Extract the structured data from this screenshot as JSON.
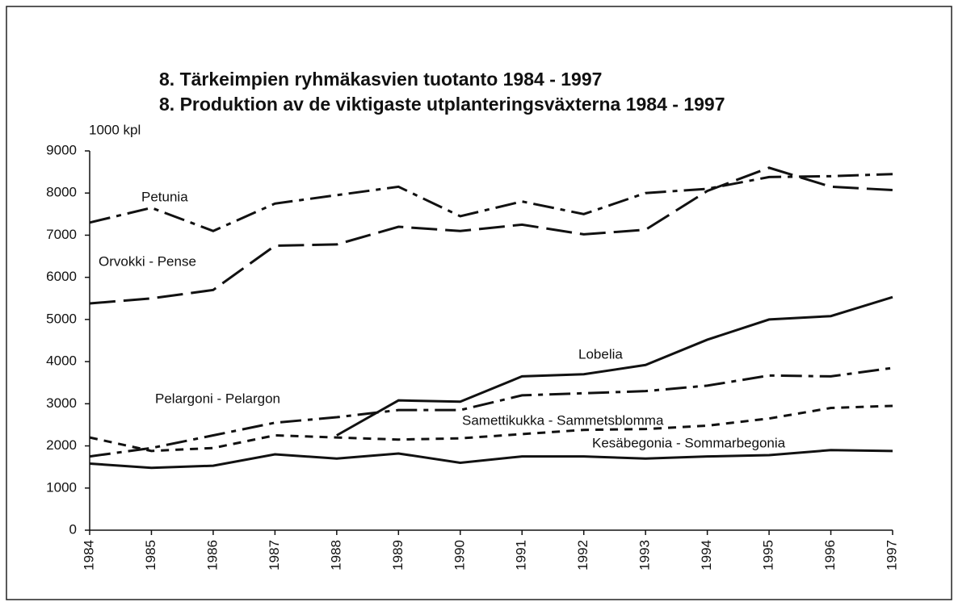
{
  "chart_data": {
    "type": "line",
    "title": "8. Tärkeimpien ryhmäkasvien tuotanto 1984 - 1997",
    "subtitle": "8. Produktion av de viktigaste utplanteringsväxterna 1984 - 1997",
    "y_label": "1000 kpl",
    "categories": [
      "1984",
      "1985",
      "1986",
      "1987",
      "1988",
      "1989",
      "1990",
      "1991",
      "1992",
      "1993",
      "1994",
      "1995",
      "1996",
      "1997"
    ],
    "ylim": [
      0,
      9000
    ],
    "yticks": [
      0,
      1000,
      2000,
      3000,
      4000,
      5000,
      6000,
      7000,
      8000,
      9000
    ],
    "series": [
      {
        "name": "Petunia",
        "color": "#111111",
        "style": "dashdot",
        "values": [
          7300,
          7650,
          7100,
          7750,
          7950,
          8150,
          7450,
          7800,
          7500,
          8000,
          8100,
          8380,
          8400,
          8450
        ]
      },
      {
        "name": "Orvokki - Pense",
        "color": "#111111",
        "style": "longdash",
        "values": [
          5380,
          5500,
          5700,
          6750,
          6780,
          7200,
          7100,
          7250,
          7020,
          7130,
          8050,
          8600,
          8150,
          8070
        ]
      },
      {
        "name": "Lobelia",
        "color": "#111111",
        "style": "solid",
        "values": [
          null,
          null,
          null,
          null,
          2250,
          3080,
          3050,
          3650,
          3700,
          3920,
          4520,
          5000,
          5080,
          5530
        ]
      },
      {
        "name": "Pelargoni - Pelargon",
        "color": "#111111",
        "style": "dashdot",
        "values": [
          1750,
          1950,
          2250,
          2550,
          2680,
          2850,
          2850,
          3200,
          3250,
          3300,
          3430,
          3670,
          3650,
          3850
        ]
      },
      {
        "name": "Samettikukka - Sammetsblomma",
        "color": "#111111",
        "style": "shortdash",
        "values": [
          2200,
          1880,
          1950,
          2250,
          2200,
          2150,
          2180,
          2280,
          2380,
          2400,
          2480,
          2650,
          2900,
          2950
        ]
      },
      {
        "name": "Kesäbegonia - Sommarbegonia",
        "color": "#111111",
        "style": "solid",
        "values": [
          1580,
          1480,
          1530,
          1800,
          1700,
          1820,
          1600,
          1750,
          1750,
          1700,
          1750,
          1780,
          1900,
          1880
        ]
      }
    ]
  }
}
